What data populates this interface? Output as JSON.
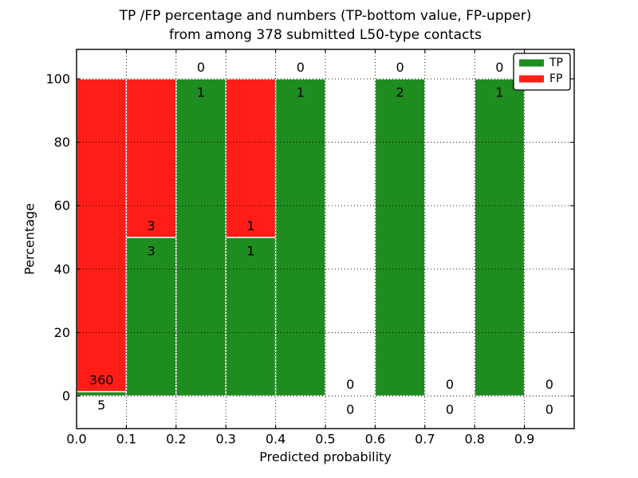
{
  "figure": {
    "title_line1": "TP /FP percentage and numbers (TP-bottom value, FP-upper)",
    "title_line2": "from among 378 submitted L50-type contacts",
    "xlabel": "Predicted probability",
    "ylabel": "Percentage"
  },
  "chart_data": {
    "type": "bar",
    "stacked": true,
    "title": "TP /FP percentage and numbers (TP-bottom value, FP-upper) from among 378 submitted L50-type contacts",
    "xlabel": "Predicted probability",
    "ylabel": "Percentage",
    "total_submitted_contacts": 378,
    "xlim": [
      0.0,
      1.0
    ],
    "ylim": [
      -10.3,
      109.3
    ],
    "xticks": [
      "0.0",
      "0.1",
      "0.2",
      "0.3",
      "0.4",
      "0.5",
      "0.6",
      "0.7",
      "0.8",
      "0.9"
    ],
    "yticks": [
      0,
      20,
      40,
      60,
      80,
      100
    ],
    "grid": true,
    "grid_style": "dotted",
    "legend": {
      "position": "upper right",
      "entries": [
        {
          "label": "TP",
          "color": "#1f8c1f"
        },
        {
          "label": "FP",
          "color": "#ff1e17"
        }
      ]
    },
    "colors": {
      "tp": "#1f8c1f",
      "fp": "#ff1e17",
      "bar_edge": "#ffffff",
      "grid": "#000000",
      "axes": "#000000",
      "background": "#ffffff"
    },
    "bins": [
      {
        "range": [
          0.0,
          0.1
        ],
        "tp_count": 5,
        "fp_count": 360,
        "tp_pct": 1.37,
        "fp_pct": 98.63
      },
      {
        "range": [
          0.1,
          0.2
        ],
        "tp_count": 3,
        "fp_count": 3,
        "tp_pct": 50,
        "fp_pct": 50
      },
      {
        "range": [
          0.2,
          0.3
        ],
        "tp_count": 1,
        "fp_count": 0,
        "tp_pct": 100,
        "fp_pct": 0
      },
      {
        "range": [
          0.3,
          0.4
        ],
        "tp_count": 1,
        "fp_count": 1,
        "tp_pct": 50,
        "fp_pct": 50
      },
      {
        "range": [
          0.4,
          0.5
        ],
        "tp_count": 1,
        "fp_count": 0,
        "tp_pct": 100,
        "fp_pct": 0
      },
      {
        "range": [
          0.5,
          0.6
        ],
        "tp_count": 0,
        "fp_count": 0,
        "tp_pct": 0,
        "fp_pct": 0
      },
      {
        "range": [
          0.6,
          0.7
        ],
        "tp_count": 2,
        "fp_count": 0,
        "tp_pct": 100,
        "fp_pct": 0
      },
      {
        "range": [
          0.7,
          0.8
        ],
        "tp_count": 0,
        "fp_count": 0,
        "tp_pct": 0,
        "fp_pct": 0
      },
      {
        "range": [
          0.8,
          0.9
        ],
        "tp_count": 1,
        "fp_count": 0,
        "tp_pct": 100,
        "fp_pct": 0
      },
      {
        "range": [
          0.9,
          1.0
        ],
        "tp_count": 0,
        "fp_count": 0,
        "tp_pct": 0,
        "fp_pct": 0
      }
    ]
  }
}
